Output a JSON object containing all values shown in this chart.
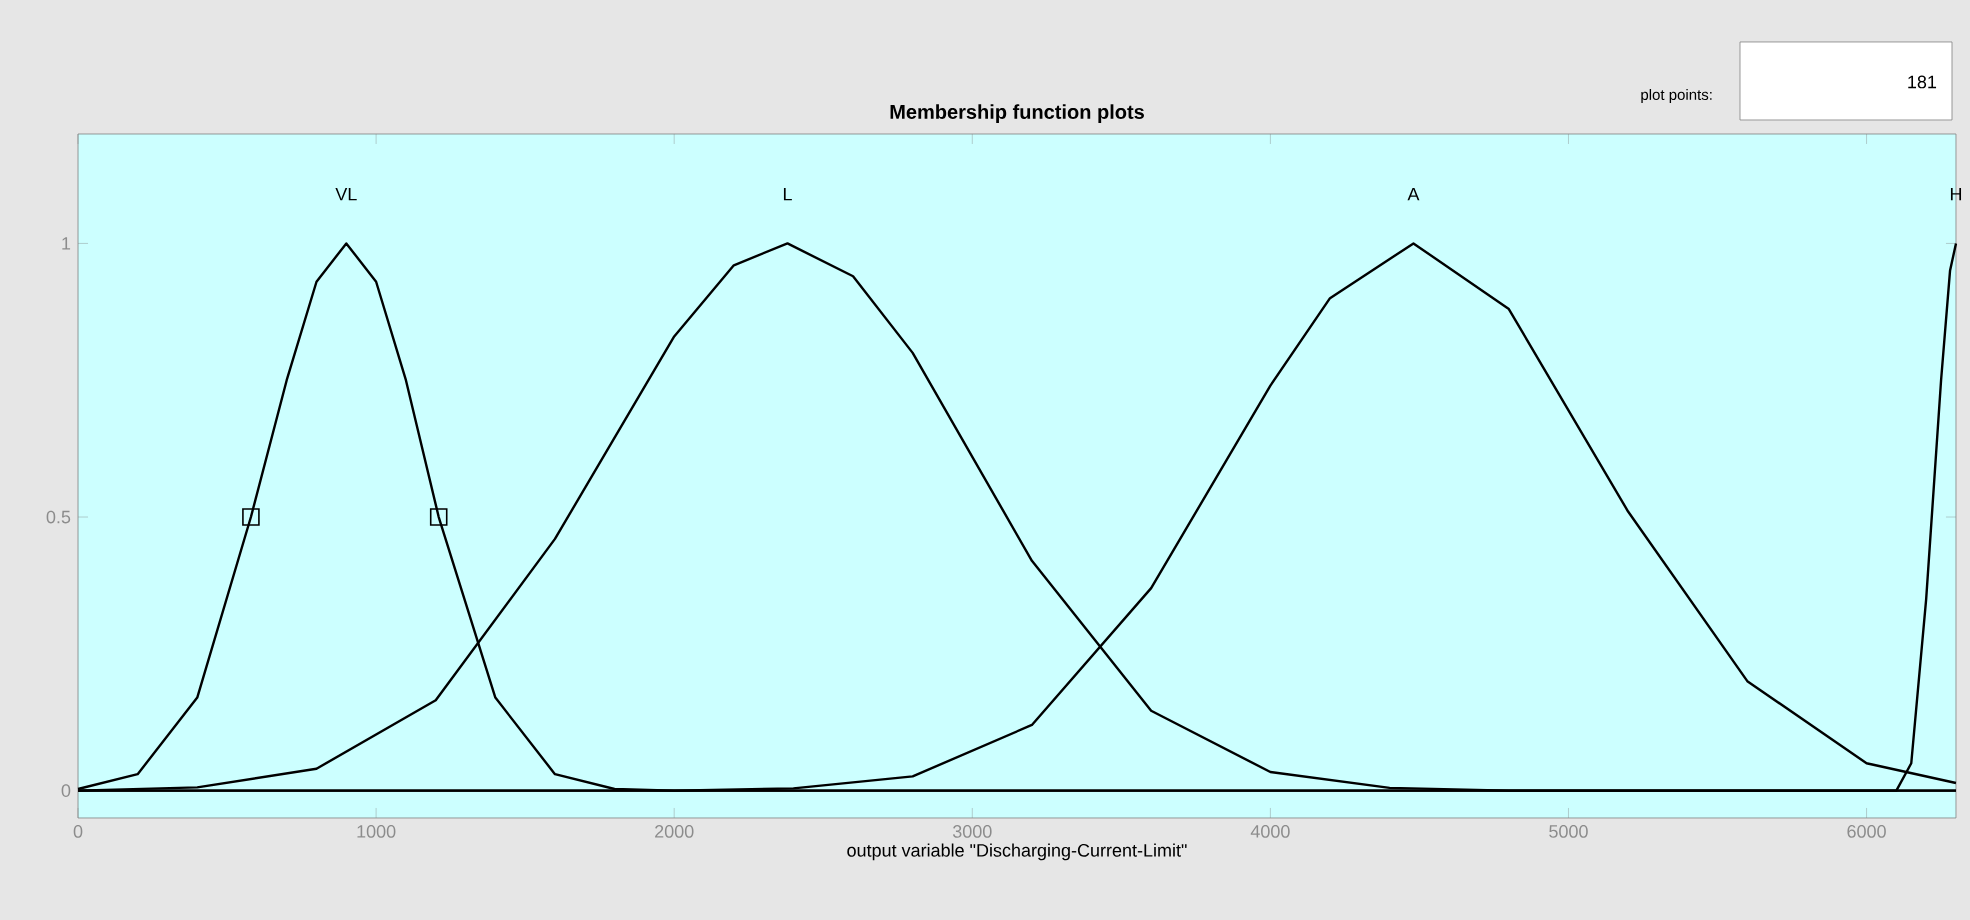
{
  "chart_data": {
    "type": "line",
    "title": "Membership function plots",
    "xlabel": "output variable \"Discharging-Current-Limit\"",
    "xlim": [
      0,
      6300
    ],
    "ylim": [
      -0.05,
      1.2
    ],
    "xticks": [
      0,
      1000,
      2000,
      3000,
      4000,
      5000,
      6000
    ],
    "yticks": [
      0,
      0.5,
      1
    ],
    "series": [
      {
        "name": "VL",
        "color": "#000000",
        "x": [
          0,
          200,
          400,
          580,
          700,
          800,
          900,
          1000,
          1100,
          1210,
          1400,
          1600,
          1800,
          2000,
          6300
        ],
        "values": [
          0.003,
          0.03,
          0.17,
          0.5,
          0.75,
          0.93,
          1,
          0.93,
          0.75,
          0.5,
          0.17,
          0.03,
          0.003,
          0,
          0
        ]
      },
      {
        "name": "L",
        "color": "#000000",
        "x": [
          0,
          400,
          800,
          1200,
          1600,
          2000,
          2200,
          2380,
          2600,
          2800,
          3200,
          3600,
          4000,
          4400,
          4800,
          6300
        ],
        "values": [
          0,
          0.006,
          0.04,
          0.165,
          0.46,
          0.83,
          0.96,
          1,
          0.94,
          0.8,
          0.42,
          0.146,
          0.034,
          0.005,
          0,
          0
        ]
      },
      {
        "name": "A",
        "color": "#000000",
        "x": [
          0,
          2000,
          2400,
          2800,
          3200,
          3600,
          4000,
          4200,
          4480,
          4800,
          5200,
          5600,
          6000,
          6300
        ],
        "values": [
          0,
          0,
          0.004,
          0.026,
          0.12,
          0.37,
          0.74,
          0.9,
          1,
          0.88,
          0.51,
          0.2,
          0.05,
          0.014
        ]
      },
      {
        "name": "H",
        "color": "#000000",
        "x": [
          0,
          6100,
          6150,
          6200,
          6250,
          6280,
          6300
        ],
        "values": [
          0,
          0,
          0.05,
          0.35,
          0.75,
          0.95,
          1
        ]
      },
      {
        "type": "scatter",
        "marker": "square",
        "color": "#000000",
        "x": [
          580,
          1210
        ],
        "values": [
          0.5,
          0.5
        ]
      }
    ],
    "annotations": [
      "plot points:",
      "181"
    ]
  }
}
